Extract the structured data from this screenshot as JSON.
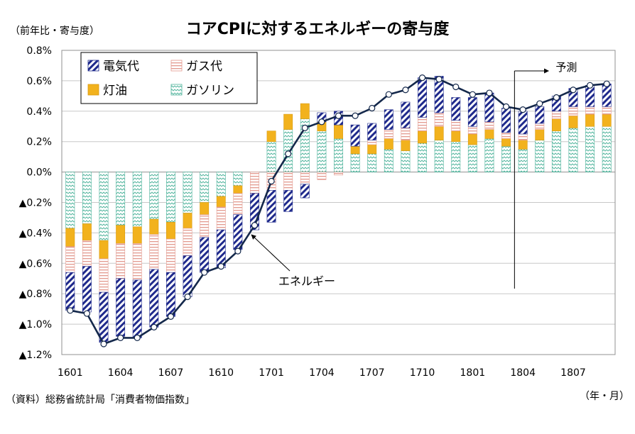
{
  "chart_data": {
    "type": "bar",
    "title": "コアCPIに対するエネルギーの寄与度",
    "ylabel": "（前年比・寄与度）",
    "xlabel": "（年・月）",
    "source": "（資料）総務省統計局「消費者物価指数」",
    "forecast_label": "予測",
    "line_annotation": "エネルギー",
    "stacked": true,
    "ylim": [
      -1.2,
      0.8
    ],
    "yticks": [
      -1.2,
      -1.0,
      -0.8,
      -0.6,
      -0.4,
      -0.2,
      0.0,
      0.2,
      0.4,
      0.6,
      0.8
    ],
    "ytick_labels": [
      "▲1.2%",
      "▲1.0%",
      "▲0.8%",
      "▲0.6%",
      "▲0.4%",
      "▲0.2%",
      "0.0%",
      "0.2%",
      "0.4%",
      "0.6%",
      "0.8%"
    ],
    "xtick_labels": [
      "1601",
      "1604",
      "1607",
      "1610",
      "1701",
      "1704",
      "1707",
      "1710",
      "1801",
      "1804",
      "1807"
    ],
    "forecast_start_index": 27,
    "legend_position": "top-left",
    "grid": true,
    "categories": [
      "1601",
      "1602",
      "1603",
      "1604",
      "1605",
      "1606",
      "1607",
      "1608",
      "1609",
      "1610",
      "1611",
      "1612",
      "1701",
      "1702",
      "1703",
      "1704",
      "1705",
      "1706",
      "1707",
      "1708",
      "1709",
      "1710",
      "1711",
      "1712",
      "1801",
      "1802",
      "1803",
      "1804",
      "1805",
      "1806",
      "1807",
      "1808",
      "1809"
    ],
    "series": [
      {
        "name": "ガソリン",
        "pattern": "gasoline",
        "values": [
          -0.37,
          -0.34,
          -0.45,
          -0.35,
          -0.36,
          -0.31,
          -0.33,
          -0.27,
          -0.2,
          -0.16,
          -0.09,
          0.0,
          0.2,
          0.28,
          0.35,
          0.27,
          0.22,
          0.12,
          0.12,
          0.15,
          0.14,
          0.19,
          0.21,
          0.2,
          0.18,
          0.22,
          0.17,
          0.15,
          0.21,
          0.27,
          0.29,
          0.3,
          0.3
        ]
      },
      {
        "name": "灯油",
        "pattern": "kerosene",
        "values": [
          -0.12,
          -0.11,
          -0.12,
          -0.12,
          -0.11,
          -0.1,
          -0.11,
          -0.1,
          -0.08,
          -0.07,
          -0.05,
          0.0,
          0.07,
          0.1,
          0.1,
          0.06,
          0.09,
          0.05,
          0.06,
          0.07,
          0.07,
          0.08,
          0.09,
          0.07,
          0.07,
          0.06,
          0.05,
          0.06,
          0.07,
          0.08,
          0.08,
          0.08,
          0.08
        ]
      },
      {
        "name": "ガス代",
        "pattern": "gas",
        "values": [
          -0.17,
          -0.17,
          -0.22,
          -0.23,
          -0.24,
          -0.23,
          -0.22,
          -0.18,
          -0.15,
          -0.15,
          -0.14,
          -0.14,
          -0.12,
          -0.12,
          -0.08,
          -0.05,
          -0.02,
          0.0,
          0.03,
          0.06,
          0.08,
          0.09,
          0.09,
          0.07,
          0.05,
          0.05,
          0.04,
          0.04,
          0.04,
          0.05,
          0.06,
          0.05,
          0.05
        ]
      },
      {
        "name": "電気代",
        "pattern": "electricity",
        "values": [
          -0.25,
          -0.3,
          -0.33,
          -0.38,
          -0.38,
          -0.38,
          -0.29,
          -0.27,
          -0.23,
          -0.25,
          -0.23,
          -0.24,
          -0.21,
          -0.14,
          -0.09,
          0.06,
          0.09,
          0.14,
          0.11,
          0.13,
          0.17,
          0.26,
          0.24,
          0.15,
          0.19,
          0.19,
          0.16,
          0.15,
          0.11,
          0.1,
          0.12,
          0.14,
          0.15
        ]
      },
      {
        "name": "エネルギー",
        "type": "line",
        "values": [
          -0.91,
          -0.93,
          -1.13,
          -1.09,
          -1.09,
          -1.02,
          -0.95,
          -0.82,
          -0.66,
          -0.62,
          -0.52,
          -0.35,
          -0.06,
          0.12,
          0.29,
          0.33,
          0.37,
          0.37,
          0.42,
          0.51,
          0.54,
          0.62,
          0.61,
          0.56,
          0.51,
          0.52,
          0.43,
          0.41,
          0.45,
          0.49,
          0.54,
          0.57,
          0.58
        ]
      }
    ]
  },
  "colors": {
    "line": "#14284b",
    "electricity_stroke": "#1f2a8c",
    "gas_stroke": "#e39a8f",
    "kerosene_fill": "#f2b21d",
    "gasoline_stroke": "#4bb29a",
    "grid": "#c8c8c8"
  }
}
